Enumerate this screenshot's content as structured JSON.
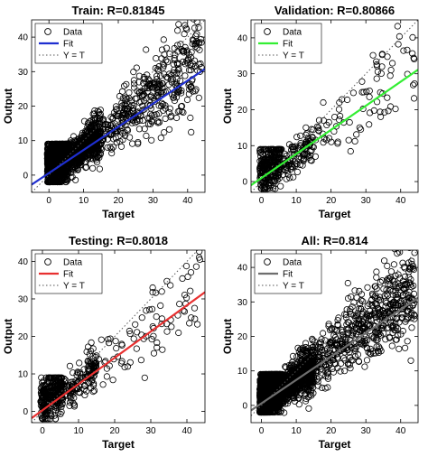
{
  "chart_data": [
    {
      "type": "scatter",
      "title": "Train: R=0.81845",
      "xlabel": "Target",
      "ylabel": "Output",
      "xlim": [
        -5,
        45
      ],
      "ylim": [
        -5,
        45
      ],
      "xticks": [
        0,
        10,
        20,
        30,
        40
      ],
      "yticks": [
        0,
        10,
        20,
        30,
        40
      ],
      "fit_color": "#1f2fd0",
      "fit_line": {
        "slope": 0.67,
        "intercept": 0.6
      },
      "legend": {
        "placement": "top-left",
        "entries": [
          "Data",
          "Fit",
          "Y = T"
        ]
      },
      "series": [
        {
          "name": "Data",
          "kind": "scatter",
          "n_points": 2300,
          "spread": 5.5,
          "x_range": [
            -1,
            44
          ]
        },
        {
          "name": "Fit",
          "kind": "line"
        },
        {
          "name": "Y = T",
          "kind": "identity-line"
        }
      ]
    },
    {
      "type": "scatter",
      "title": "Validation: R=0.80866",
      "xlabel": "Target",
      "ylabel": "Output",
      "xlim": [
        -3,
        45
      ],
      "ylim": [
        -3,
        45
      ],
      "xticks": [
        0,
        10,
        20,
        30,
        40
      ],
      "yticks": [
        0,
        10,
        20,
        30,
        40
      ],
      "fit_color": "#33ee33",
      "fit_line": {
        "slope": 0.67,
        "intercept": 1.0
      },
      "legend": {
        "placement": "top-left",
        "entries": [
          "Data",
          "Fit",
          "Y = T"
        ]
      },
      "series": [
        {
          "name": "Data",
          "kind": "scatter",
          "n_points": 450,
          "spread": 5.5,
          "x_range": [
            -1,
            44
          ]
        },
        {
          "name": "Fit",
          "kind": "line"
        },
        {
          "name": "Y = T",
          "kind": "identity-line"
        }
      ]
    },
    {
      "type": "scatter",
      "title": "Testing: R=0.8018",
      "xlabel": "Target",
      "ylabel": "Output",
      "xlim": [
        -3,
        45
      ],
      "ylim": [
        -3,
        43
      ],
      "xticks": [
        0,
        10,
        20,
        30,
        40
      ],
      "yticks": [
        0,
        10,
        20,
        30,
        40
      ],
      "fit_color": "#e83030",
      "fit_line": {
        "slope": 0.7,
        "intercept": 0.3
      },
      "legend": {
        "placement": "top-left",
        "entries": [
          "Data",
          "Fit",
          "Y = T"
        ]
      },
      "series": [
        {
          "name": "Data",
          "kind": "scatter",
          "n_points": 500,
          "spread": 5.5,
          "x_range": [
            -1,
            44
          ]
        },
        {
          "name": "Fit",
          "kind": "line"
        },
        {
          "name": "Y = T",
          "kind": "identity-line"
        }
      ]
    },
    {
      "type": "scatter",
      "title": "All: R=0.814",
      "xlabel": "Target",
      "ylabel": "Output",
      "xlim": [
        -3,
        45
      ],
      "ylim": [
        -5,
        45
      ],
      "xticks": [
        0,
        10,
        20,
        30,
        40
      ],
      "yticks": [
        0,
        10,
        20,
        30,
        40
      ],
      "fit_color": "#6e6e6e",
      "fit_line": {
        "slope": 0.68,
        "intercept": 0.6
      },
      "legend": {
        "placement": "top-left",
        "entries": [
          "Data",
          "Fit",
          "Y = T"
        ]
      },
      "series": [
        {
          "name": "Data",
          "kind": "scatter",
          "n_points": 3000,
          "spread": 5.5,
          "x_range": [
            -1,
            44
          ]
        },
        {
          "name": "Fit",
          "kind": "line"
        },
        {
          "name": "Y = T",
          "kind": "identity-line"
        }
      ]
    }
  ]
}
